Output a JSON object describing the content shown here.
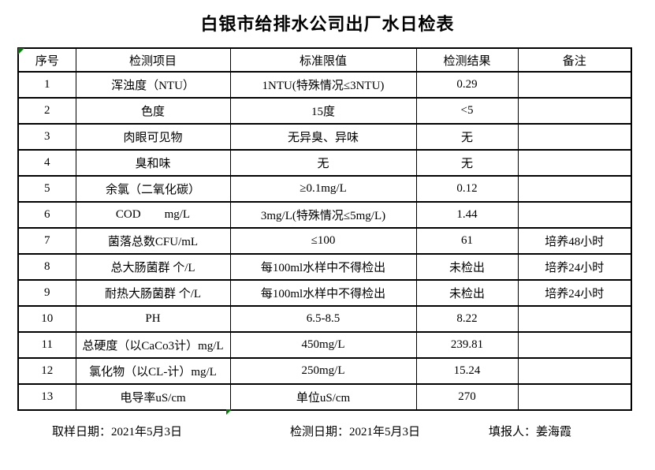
{
  "title": "白银市给排水公司出厂水日检表",
  "table": {
    "headers": [
      "序号",
      "检测项目",
      "标准限值",
      "检测结果",
      "备注"
    ],
    "rows": [
      {
        "no": "1",
        "item": "浑浊度（NTU）",
        "limit": "1NTU(特殊情况≤3NTU)",
        "result": "0.29",
        "note": ""
      },
      {
        "no": "2",
        "item": "色度",
        "limit": "15度",
        "result": "<5",
        "note": ""
      },
      {
        "no": "3",
        "item": "肉眼可见物",
        "limit": "无异臭、异味",
        "result": "无",
        "note": ""
      },
      {
        "no": "4",
        "item": "臭和味",
        "limit": "无",
        "result": "无",
        "note": ""
      },
      {
        "no": "5",
        "item": "余氯（二氧化碳）",
        "limit": "≥0.1mg/L",
        "result": "0.12",
        "note": ""
      },
      {
        "no": "6",
        "item": "COD        mg/L",
        "limit": "3mg/L(特殊情况≤5mg/L)",
        "result": "1.44",
        "note": ""
      },
      {
        "no": "7",
        "item": "菌落总数CFU/mL",
        "limit": "≤100",
        "result": "61",
        "note": "培养48小时"
      },
      {
        "no": "8",
        "item": "总大肠菌群 个/L",
        "limit": "每100ml水样中不得检出",
        "result": "未检出",
        "note": "培养24小时"
      },
      {
        "no": "9",
        "item": "耐热大肠菌群 个/L",
        "limit": "每100ml水样中不得检出",
        "result": "未检出",
        "note": "培养24小时"
      },
      {
        "no": "10",
        "item": "PH",
        "limit": "6.5-8.5",
        "result": "8.22",
        "note": ""
      },
      {
        "no": "11",
        "item": "总硬度（以CaCo3计）mg/L",
        "limit": "450mg/L",
        "result": "239.81",
        "note": ""
      },
      {
        "no": "12",
        "item": "氯化物（以CL-计）mg/L",
        "limit": "250mg/L",
        "result": "15.24",
        "note": ""
      },
      {
        "no": "13",
        "item": "电导率uS/cm",
        "limit": "单位uS/cm",
        "result": "270",
        "note": ""
      }
    ]
  },
  "footer": {
    "sampling_date": "取样日期：2021年5月3日",
    "test_date": "检测日期：2021年5月3日",
    "reporter": "填报人：姜海霞"
  },
  "colors": {
    "marker_green": "#008000",
    "border": "#000000",
    "background": "#ffffff",
    "text": "#000000"
  }
}
